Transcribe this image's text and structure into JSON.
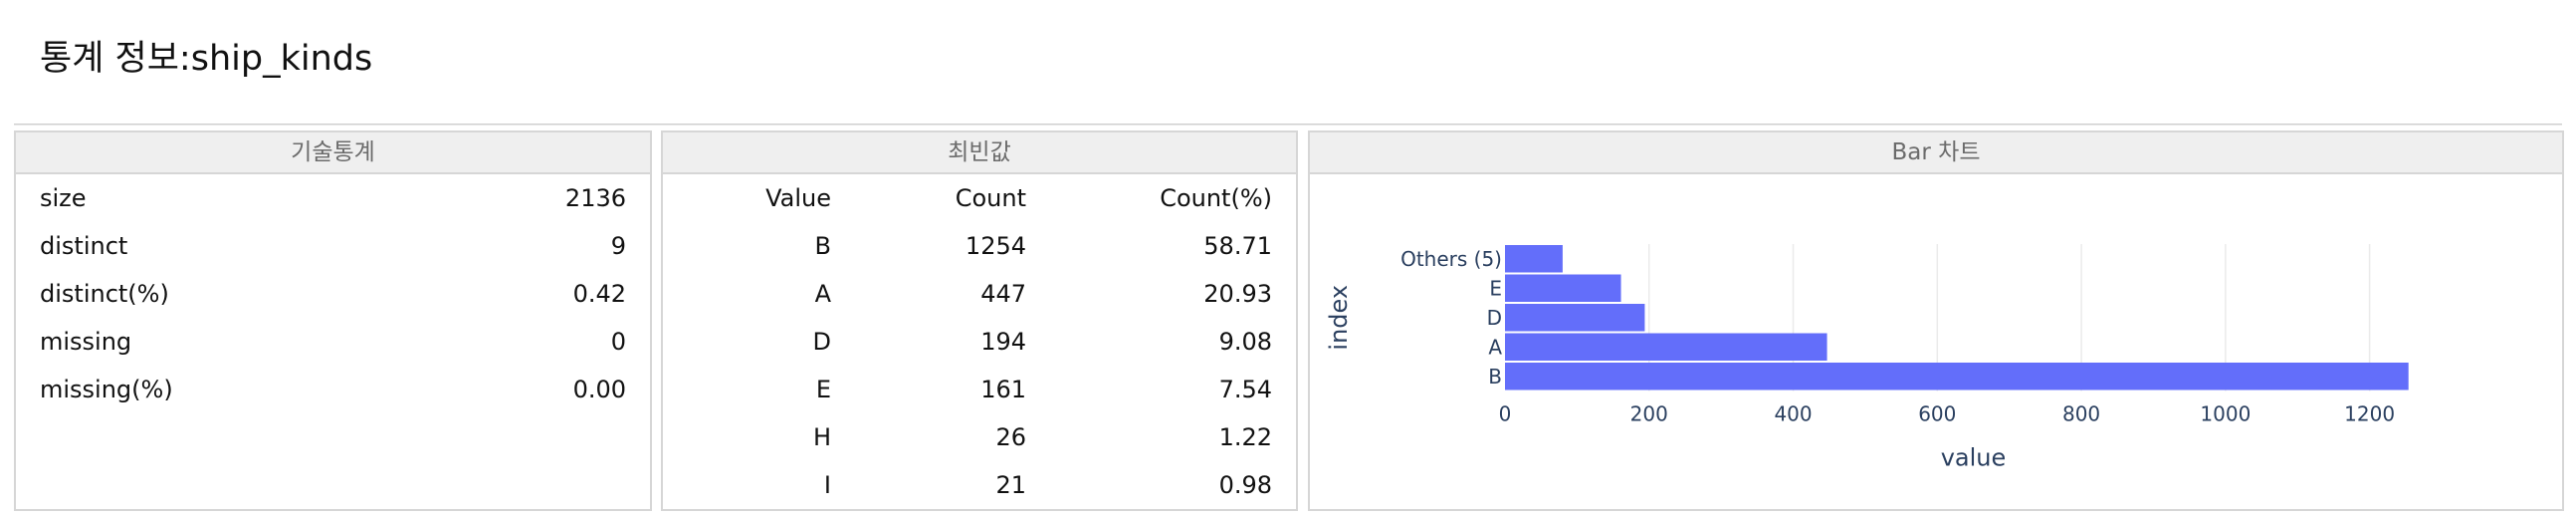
{
  "page": {
    "title": "통계 정보:ship_kinds"
  },
  "stats_panel": {
    "header": "기술통계",
    "rows": [
      {
        "label": "size",
        "value": "2136"
      },
      {
        "label": "distinct",
        "value": "9"
      },
      {
        "label": "distinct(%)",
        "value": "0.42"
      },
      {
        "label": "missing",
        "value": "0"
      },
      {
        "label": "missing(%)",
        "value": "0.00"
      }
    ]
  },
  "freq_panel": {
    "header": "최빈값",
    "columns": [
      "Value",
      "Count",
      "Count(%)"
    ],
    "rows": [
      {
        "value": "B",
        "count": "1254",
        "pct": "58.71"
      },
      {
        "value": "A",
        "count": "447",
        "pct": "20.93"
      },
      {
        "value": "D",
        "count": "194",
        "pct": "9.08"
      },
      {
        "value": "E",
        "count": "161",
        "pct": "7.54"
      },
      {
        "value": "H",
        "count": "26",
        "pct": "1.22"
      },
      {
        "value": "I",
        "count": "21",
        "pct": "0.98"
      }
    ]
  },
  "chart_panel": {
    "header": "Bar 차트"
  },
  "chart_data": {
    "type": "bar",
    "orientation": "horizontal",
    "categories": [
      "B",
      "A",
      "D",
      "E",
      "Others (5)"
    ],
    "values": [
      1254,
      447,
      194,
      161,
      80
    ],
    "xlabel": "value",
    "ylabel": "index",
    "xlim": [
      0,
      1300
    ],
    "xticks": [
      0,
      200,
      400,
      600,
      800,
      1000,
      1200
    ],
    "grid": true,
    "bar_color": "#636efa"
  }
}
